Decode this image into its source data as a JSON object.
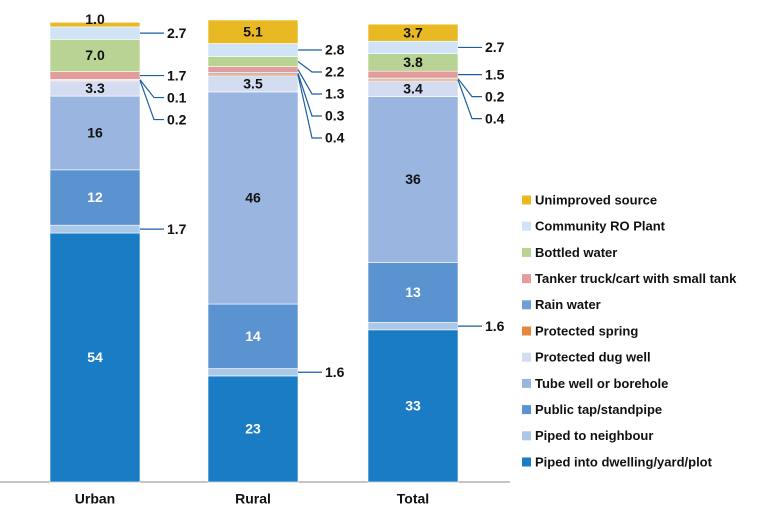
{
  "chart_data": {
    "type": "stacked_bar",
    "categories": [
      "Urban",
      "Rural",
      "Total"
    ],
    "series": [
      {
        "name": "Piped into dwelling/yard/plot",
        "color": "#1a7cc4",
        "values": [
          54,
          23,
          33
        ],
        "value_labels": [
          "54",
          "23",
          "33"
        ]
      },
      {
        "name": "Piped to neighbour",
        "color": "#a9c8ea",
        "values": [
          1.7,
          1.6,
          1.6
        ],
        "value_labels": [
          "1.7",
          "1.6",
          "1.6"
        ]
      },
      {
        "name": "Public tap/standpipe",
        "color": "#5b93d1",
        "values": [
          12,
          14,
          13
        ],
        "value_labels": [
          "12",
          "14",
          "13"
        ]
      },
      {
        "name": "Tube well or borehole",
        "color": "#9bb5e1",
        "values": [
          16,
          46,
          36
        ],
        "value_labels": [
          "16",
          "46",
          "36"
        ]
      },
      {
        "name": "Protected dug well",
        "color": "#d4dcf1",
        "values": [
          3.3,
          3.5,
          3.4
        ],
        "value_labels": [
          "3.3",
          "3.5",
          "3.4"
        ]
      },
      {
        "name": "Protected spring",
        "color": "#e8873a",
        "values": [
          0.2,
          0.4,
          0.4
        ],
        "value_labels": [
          "0.2",
          "0.4",
          "0.4"
        ]
      },
      {
        "name": "Rain water",
        "color": "#6f9fd8",
        "values": [
          0.1,
          0.3,
          0.2
        ],
        "value_labels": [
          "0.1",
          "0.3",
          "0.2"
        ]
      },
      {
        "name": "Tanker truck/cart with small tank",
        "color": "#e29c9c",
        "values": [
          1.7,
          1.3,
          1.5
        ],
        "value_labels": [
          "1.7",
          "1.3",
          "1.5"
        ]
      },
      {
        "name": "Bottled water",
        "color": "#b8d393",
        "values": [
          7.0,
          2.2,
          3.8
        ],
        "value_labels": [
          "7.0",
          "2.2",
          "3.8"
        ]
      },
      {
        "name": "Community RO Plant",
        "color": "#d1e4f6",
        "values": [
          2.7,
          2.8,
          2.7
        ],
        "value_labels": [
          "2.7",
          "2.8",
          "2.7"
        ]
      },
      {
        "name": "Unimproved source",
        "color": "#e8b922",
        "values": [
          1.0,
          5.1,
          3.7
        ],
        "value_labels": [
          "1.0",
          "5.1",
          "3.7"
        ]
      }
    ]
  }
}
